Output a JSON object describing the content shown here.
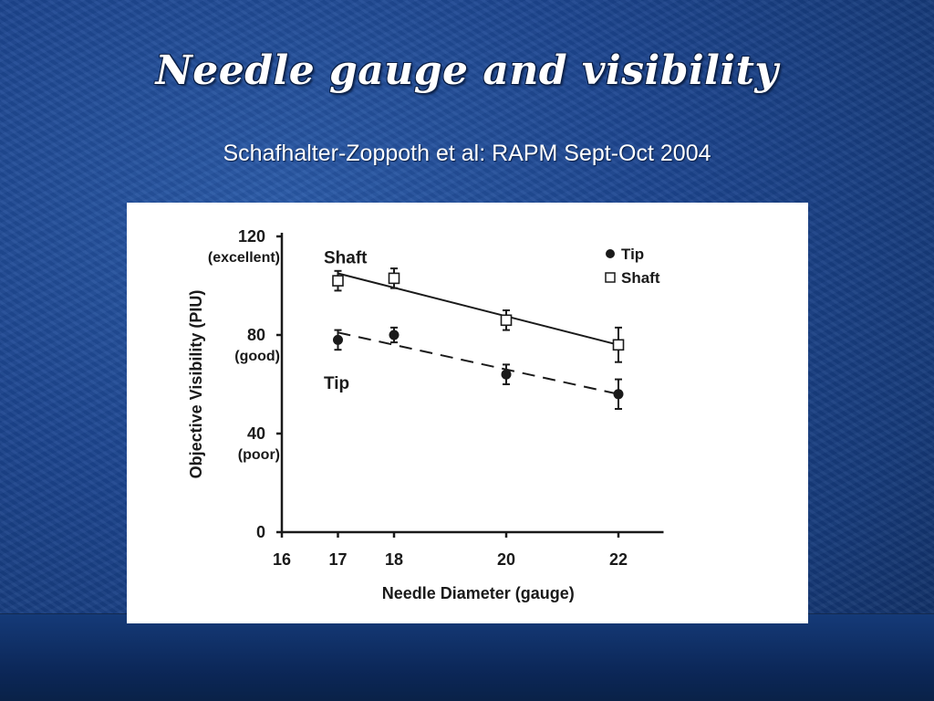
{
  "slide": {
    "title": "Needle gauge and visibility",
    "subtitle": "Schafhalter-Zoppoth et al:  RAPM Sept-Oct 2004"
  },
  "colors": {
    "background": "#1d4690",
    "title_text": "#ffffff",
    "chart_ink": "#1a1a1a",
    "chart_background": "#ffffff"
  },
  "chart_data": {
    "type": "line",
    "xlabel": "Needle Diameter (gauge)",
    "ylabel": "Objective Visibility (PIU)",
    "xlim": [
      16,
      23
    ],
    "ylim": [
      0,
      120
    ],
    "x_ticks": [
      16,
      17,
      18,
      20,
      22
    ],
    "y_ticks": [
      {
        "value": 120,
        "label": "120",
        "qualifier": "(excellent)"
      },
      {
        "value": 80,
        "label": "80",
        "qualifier": "(good)"
      },
      {
        "value": 40,
        "label": "40",
        "qualifier": "(poor)"
      },
      {
        "value": 0,
        "label": "0",
        "qualifier": ""
      }
    ],
    "series": [
      {
        "name": "Tip",
        "marker": "filled-circle",
        "line_style": "dashed",
        "annotation": "Tip",
        "x": [
          17,
          18,
          20,
          22
        ],
        "y": [
          78,
          80,
          64,
          56
        ],
        "error": [
          4,
          3,
          4,
          6
        ],
        "fit": {
          "x": [
            17,
            22
          ],
          "y": [
            81,
            56
          ]
        }
      },
      {
        "name": "Shaft",
        "marker": "open-square",
        "line_style": "solid",
        "annotation": "Shaft",
        "x": [
          17,
          18,
          20,
          22
        ],
        "y": [
          102,
          103,
          86,
          76
        ],
        "error": [
          4,
          4,
          4,
          7
        ],
        "fit": {
          "x": [
            17,
            22
          ],
          "y": [
            105,
            76
          ]
        }
      }
    ],
    "legend": {
      "position": "top-right",
      "entries": [
        "Tip",
        "Shaft"
      ]
    },
    "grid": false
  }
}
